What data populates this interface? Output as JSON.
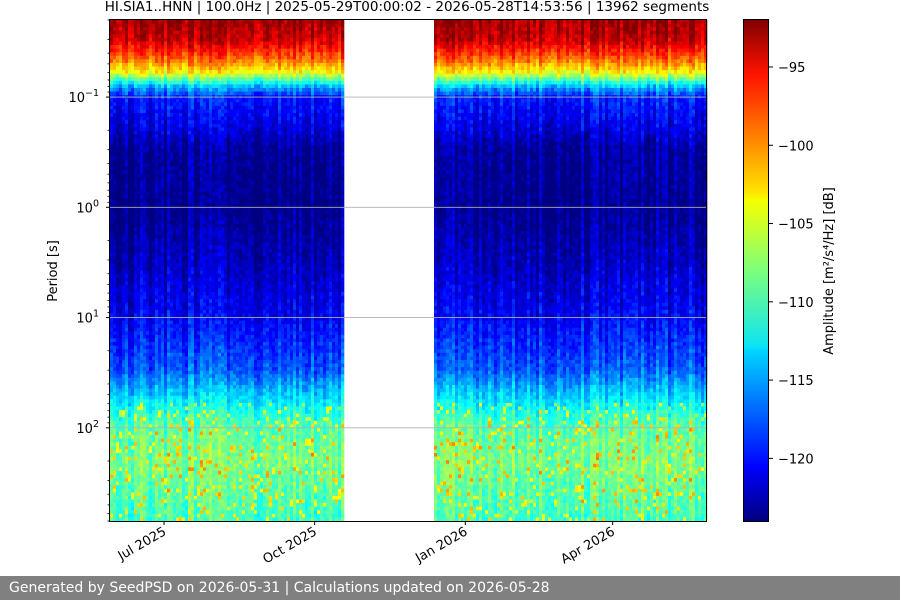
{
  "chart_data": {
    "type": "heatmap",
    "title": "HI.SIA1..HNN | 100.0Hz | 2025-05-29T00:00:02 - 2026-05-28T14:53:56 | 13962 segments",
    "xlabel": "",
    "ylabel": "Period [s]",
    "y_scale": "log",
    "y_inverted": true,
    "ylim": [
      0.02,
      700
    ],
    "y_ticks": [
      {
        "value": 0.1,
        "label": "10",
        "exp": "−1"
      },
      {
        "value": 1,
        "label": "10",
        "exp": "0"
      },
      {
        "value": 10,
        "label": "10",
        "exp": "1"
      },
      {
        "value": 100,
        "label": "10",
        "exp": "2"
      }
    ],
    "xlim": [
      "2025-05-29",
      "2026-05-28"
    ],
    "x_ticks": [
      {
        "date": "2025-07-01",
        "label": "Jul 2025"
      },
      {
        "date": "2025-10-01",
        "label": "Oct 2025"
      },
      {
        "date": "2026-01-01",
        "label": "Jan 2026"
      },
      {
        "date": "2026-04-01",
        "label": "Apr 2026"
      }
    ],
    "data_gap": [
      "2025-10-19",
      "2025-12-12"
    ],
    "grid": "horizontal",
    "colormap": "jet",
    "colorbar": {
      "label": "Amplitude [m²/s⁴/Hz] [dB]",
      "range": [
        -124,
        -92
      ],
      "ticks": [
        -95,
        -100,
        -105,
        -110,
        -115,
        -120
      ]
    },
    "amplitude_profile": [
      {
        "period": 0.02,
        "db": -93
      },
      {
        "period": 0.03,
        "db": -94
      },
      {
        "period": 0.045,
        "db": -99
      },
      {
        "period": 0.06,
        "db": -104
      },
      {
        "period": 0.08,
        "db": -114
      },
      {
        "period": 0.1,
        "db": -119
      },
      {
        "period": 0.2,
        "db": -121
      },
      {
        "period": 0.3,
        "db": -123
      },
      {
        "period": 1,
        "db": -123.5
      },
      {
        "period": 3,
        "db": -122
      },
      {
        "period": 10,
        "db": -120
      },
      {
        "period": 30,
        "db": -117
      },
      {
        "period": 60,
        "db": -112
      },
      {
        "period": 100,
        "db": -109
      },
      {
        "period": 200,
        "db": -108
      },
      {
        "period": 700,
        "db": -110
      }
    ]
  },
  "footer": {
    "text": "Generated by SeedPSD on 2026-05-31 | Calculations updated on 2026-05-28"
  }
}
